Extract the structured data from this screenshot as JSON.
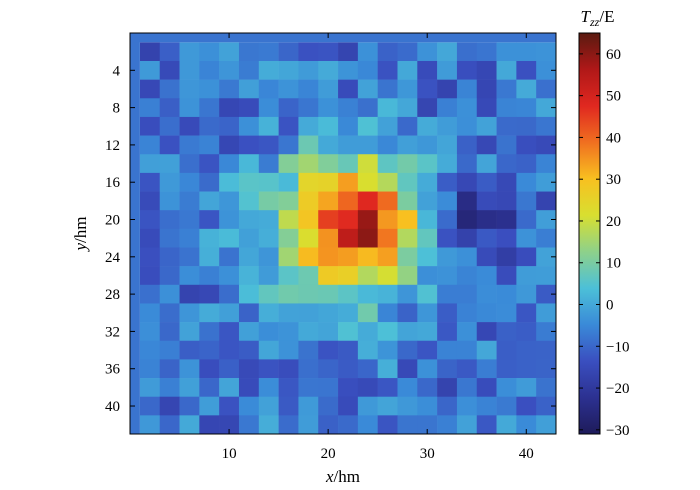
{
  "chart_data": {
    "type": "heatmap",
    "title": "",
    "xlabel": {
      "var": "x",
      "unit": "/hm"
    },
    "ylabel": {
      "var": "y",
      "unit": "/hm"
    },
    "colorbar_label": {
      "var": "T",
      "sub": "zz",
      "unit": "/E"
    },
    "xlim": [
      0,
      43
    ],
    "ylim": [
      43,
      0
    ],
    "x_ticks": [
      10,
      20,
      30,
      40
    ],
    "y_ticks": [
      4,
      8,
      12,
      16,
      20,
      24,
      28,
      32,
      36,
      40
    ],
    "colorbar_range": [
      -31,
      65
    ],
    "colorbar_ticks": [
      -30,
      -20,
      -10,
      0,
      10,
      20,
      30,
      40,
      50,
      60
    ],
    "colormap": [
      "#1e1b5a",
      "#2c3191",
      "#3a4fc0",
      "#3a8ad8",
      "#4cc0d8",
      "#8ed18a",
      "#d8df30",
      "#f8c020",
      "#f07020",
      "#e02820",
      "#b01818",
      "#5a1a10"
    ],
    "grid": false,
    "field": {
      "cols": 21,
      "rows": 21,
      "cell_size_hm": 2,
      "x_start_hm": 1,
      "y_start_hm": 1,
      "background_level": -8,
      "anomaly": {
        "center_x_hm": 22,
        "center_y_hm": 21,
        "peak_center_x_hm": 24,
        "peak_center_y_hm": 20,
        "peak_value": 64,
        "main_value": 52
      },
      "negative_lobe": {
        "center_x_hm": 35,
        "center_y_hm": 20,
        "value": -26
      }
    }
  }
}
